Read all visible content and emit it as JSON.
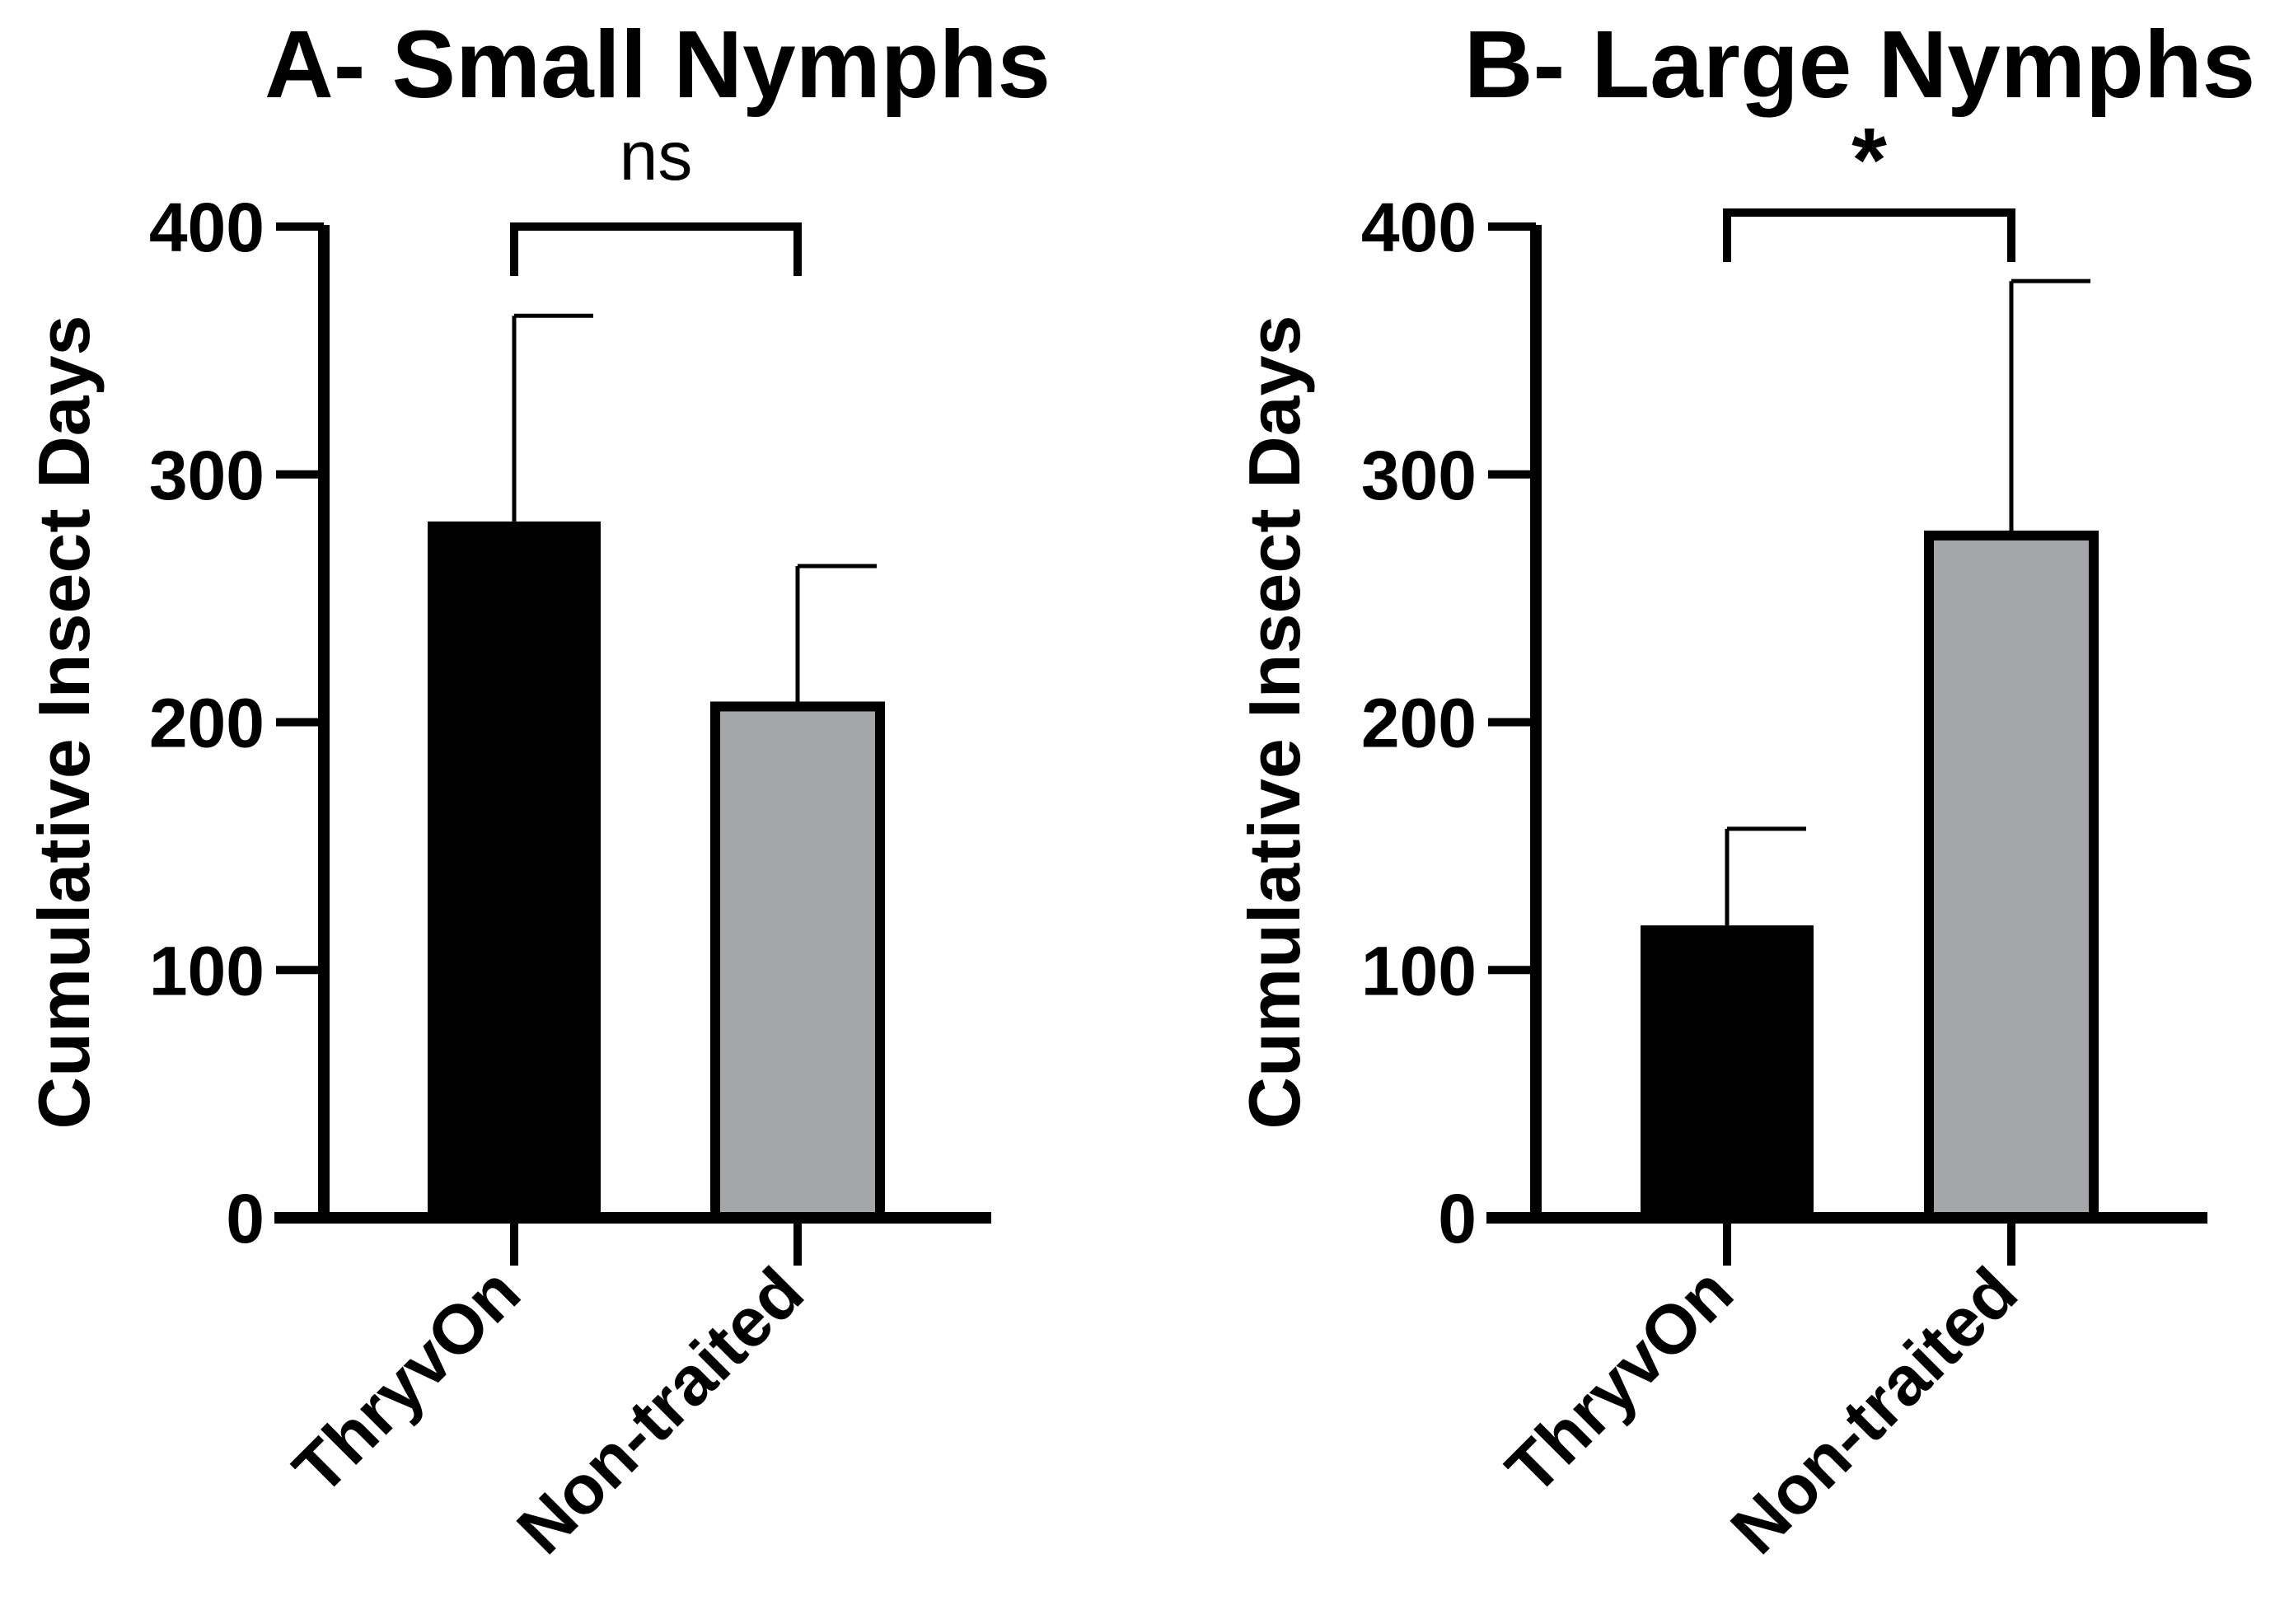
{
  "chart_data": [
    {
      "type": "bar",
      "title": "A- Small Nymphs",
      "xlabel": "",
      "ylabel": "Cumulative Insect Days",
      "ylim": [
        0,
        400
      ],
      "yticks": [
        "0",
        "100",
        "200",
        "300",
        "400"
      ],
      "categories": [
        "ThryvOn",
        "Non-traited"
      ],
      "values": [
        281,
        208
      ],
      "error_upper": [
        364,
        263
      ],
      "bar_colors": [
        "#000000",
        "#a5a6aa"
      ],
      "significance": "ns"
    },
    {
      "type": "bar",
      "title": "B- Large Nymphs",
      "xlabel": "",
      "ylabel": "Cumulative Insect Days",
      "ylim": [
        0,
        400
      ],
      "yticks": [
        "0",
        "100",
        "200",
        "300",
        "400"
      ],
      "categories": [
        "ThryvOn",
        "Non-traited"
      ],
      "values": [
        118,
        277
      ],
      "error_upper": [
        157,
        378
      ],
      "bar_colors": [
        "#000000",
        "#a5a6aa"
      ],
      "significance": "*"
    }
  ]
}
